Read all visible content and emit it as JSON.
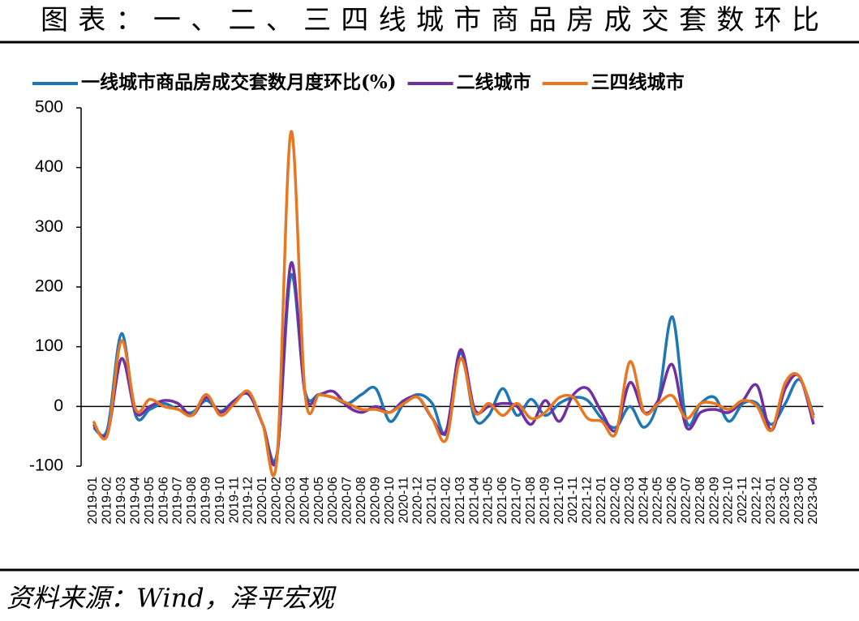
{
  "chart_data": {
    "type": "line",
    "title": "图表：一、二、三四线城市商品房成交套数环比",
    "source": "资料来源：Wind，泽平宏观",
    "categories": [
      "2019-01",
      "2019-02",
      "2019-03",
      "2019-04",
      "2019-05",
      "2019-06",
      "2019-07",
      "2019-08",
      "2019-09",
      "2019-10",
      "2019-11",
      "2019-12",
      "2020-01",
      "2020-02",
      "2020-03",
      "2020-04",
      "2020-05",
      "2020-06",
      "2020-07",
      "2020-08",
      "2020-09",
      "2020-10",
      "2020-11",
      "2020-12",
      "2021-01",
      "2021-02",
      "2021-03",
      "2021-04",
      "2021-05",
      "2021-06",
      "2021-07",
      "2021-08",
      "2021-09",
      "2021-10",
      "2021-11",
      "2021-12",
      "2022-01",
      "2022-02",
      "2022-03",
      "2022-04",
      "2022-05",
      "2022-06",
      "2022-07",
      "2022-08",
      "2022-09",
      "2022-10",
      "2022-11",
      "2022-12",
      "2023-01",
      "2023-02",
      "2023-03",
      "2023-04"
    ],
    "series": [
      {
        "name": "一线城市商品房成交套数月度环比(%)",
        "color": "#1f77b4",
        "values": [
          -35,
          -38,
          122,
          -15,
          -5,
          5,
          -5,
          -10,
          10,
          -8,
          10,
          22,
          -30,
          -80,
          220,
          25,
          20,
          15,
          5,
          20,
          30,
          -25,
          5,
          20,
          5,
          -45,
          90,
          -20,
          -15,
          30,
          -15,
          12,
          -15,
          5,
          15,
          10,
          -20,
          -35,
          0,
          -35,
          10,
          150,
          -25,
          5,
          15,
          -25,
          5,
          5,
          -30,
          5,
          45,
          -15
        ]
      },
      {
        "name": "二线城市",
        "color": "#7030a0",
        "values": [
          -30,
          -45,
          80,
          -10,
          0,
          10,
          5,
          -15,
          15,
          -10,
          10,
          20,
          -30,
          -85,
          240,
          20,
          20,
          25,
          0,
          -10,
          0,
          -10,
          10,
          15,
          -20,
          -40,
          95,
          -5,
          0,
          5,
          0,
          -30,
          10,
          -25,
          20,
          30,
          -10,
          -40,
          40,
          -10,
          10,
          70,
          -35,
          -10,
          -5,
          -10,
          10,
          35,
          -40,
          30,
          50,
          -30
        ]
      },
      {
        "name": "三四线城市",
        "color": "#e87722",
        "values": [
          -25,
          -48,
          110,
          -5,
          12,
          0,
          -5,
          -15,
          20,
          -15,
          5,
          25,
          -30,
          -88,
          460,
          20,
          20,
          15,
          5,
          -5,
          -5,
          -10,
          5,
          15,
          -20,
          -55,
          80,
          -10,
          5,
          -15,
          5,
          -20,
          -10,
          15,
          15,
          -20,
          -25,
          -45,
          75,
          -10,
          5,
          18,
          -20,
          5,
          5,
          -5,
          10,
          0,
          -40,
          40,
          50,
          -20
        ]
      }
    ],
    "ylim": [
      -100,
      500
    ],
    "yticks": [
      -100,
      0,
      100,
      200,
      300,
      400,
      500
    ],
    "grid": false,
    "legend": "top"
  }
}
